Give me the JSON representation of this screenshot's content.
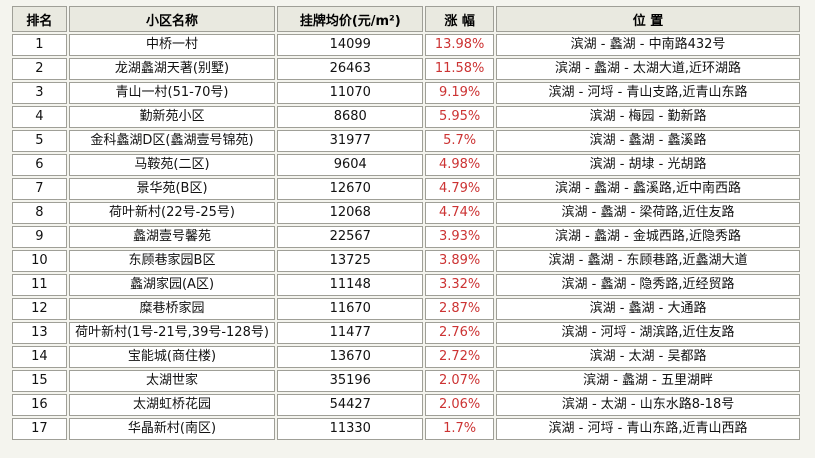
{
  "colors": {
    "page_background": "#f4f4ee",
    "header_background": "#e9e9e0",
    "cell_background": "#ffffff",
    "border": "#9f9f97",
    "text": "#111111",
    "change_text": "#cc3333"
  },
  "table": {
    "columns": [
      {
        "key": "rank",
        "label": "排名"
      },
      {
        "key": "name",
        "label": "小区名称"
      },
      {
        "key": "price",
        "label": "挂牌均价(元/m²)"
      },
      {
        "key": "change",
        "label": "涨 幅"
      },
      {
        "key": "location",
        "label": "位 置"
      }
    ],
    "rows": [
      {
        "rank": "1",
        "name": "中桥一村",
        "price": "14099",
        "change": "13.98%",
        "location": "滨湖 - 蠡湖 - 中南路432号"
      },
      {
        "rank": "2",
        "name": "龙湖蠡湖天著(别墅)",
        "price": "26463",
        "change": "11.58%",
        "location": "滨湖 - 蠡湖 - 太湖大道,近环湖路"
      },
      {
        "rank": "3",
        "name": "青山一村(51-70号)",
        "price": "11070",
        "change": "9.19%",
        "location": "滨湖 - 河埒 - 青山支路,近青山东路"
      },
      {
        "rank": "4",
        "name": "勤新苑小区",
        "price": "8680",
        "change": "5.95%",
        "location": "滨湖 - 梅园 - 勤新路"
      },
      {
        "rank": "5",
        "name": "金科蠡湖D区(蠡湖壹号锦苑)",
        "price": "31977",
        "change": "5.7%",
        "location": "滨湖 - 蠡湖 - 蠡溪路"
      },
      {
        "rank": "6",
        "name": "马鞍苑(二区)",
        "price": "9604",
        "change": "4.98%",
        "location": "滨湖 - 胡埭 - 光胡路"
      },
      {
        "rank": "7",
        "name": "景华苑(B区)",
        "price": "12670",
        "change": "4.79%",
        "location": "滨湖 - 蠡湖 - 蠡溪路,近中南西路"
      },
      {
        "rank": "8",
        "name": "荷叶新村(22号-25号)",
        "price": "12068",
        "change": "4.74%",
        "location": "滨湖 - 蠡湖 - 梁荷路,近住友路"
      },
      {
        "rank": "9",
        "name": "蠡湖壹号馨苑",
        "price": "22567",
        "change": "3.93%",
        "location": "滨湖 - 蠡湖 - 金城西路,近隐秀路"
      },
      {
        "rank": "10",
        "name": "东顾巷家园B区",
        "price": "13725",
        "change": "3.89%",
        "location": "滨湖 - 蠡湖 - 东顾巷路,近蠡湖大道"
      },
      {
        "rank": "11",
        "name": "蠡湖家园(A区)",
        "price": "11148",
        "change": "3.32%",
        "location": "滨湖 - 蠡湖 - 隐秀路,近经贸路"
      },
      {
        "rank": "12",
        "name": "糜巷桥家园",
        "price": "11670",
        "change": "2.87%",
        "location": "滨湖 - 蠡湖 - 大通路"
      },
      {
        "rank": "13",
        "name": "荷叶新村(1号-21号,39号-128号)",
        "price": "11477",
        "change": "2.76%",
        "location": "滨湖 - 河埒 - 湖滨路,近住友路"
      },
      {
        "rank": "14",
        "name": "宝能城(商住楼)",
        "price": "13670",
        "change": "2.72%",
        "location": "滨湖 - 太湖 - 吴都路"
      },
      {
        "rank": "15",
        "name": "太湖世家",
        "price": "35196",
        "change": "2.07%",
        "location": "滨湖 - 蠡湖 - 五里湖畔"
      },
      {
        "rank": "16",
        "name": "太湖虹桥花园",
        "price": "54427",
        "change": "2.06%",
        "location": "滨湖 - 太湖 - 山东水路8-18号"
      },
      {
        "rank": "17",
        "name": "华晶新村(南区)",
        "price": "11330",
        "change": "1.7%",
        "location": "滨湖 - 河埒 - 青山东路,近青山西路"
      }
    ]
  }
}
